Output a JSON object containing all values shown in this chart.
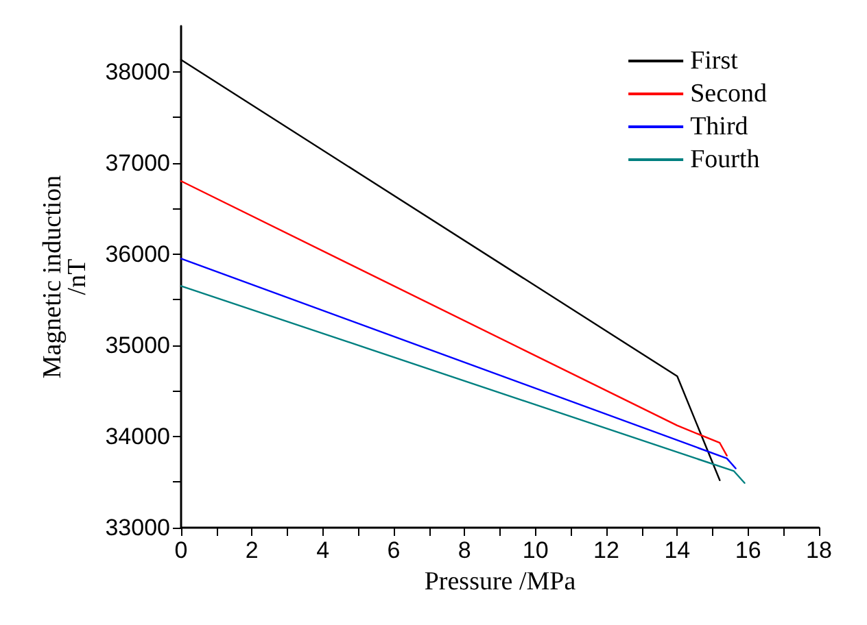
{
  "chart_data": {
    "type": "line",
    "xlabel": "Pressure /MPa",
    "ylabel": "Magnetic induction\n/nT",
    "xlim": [
      0,
      18
    ],
    "ylim": [
      33000,
      38500
    ],
    "xticks": [
      0,
      {
        "value": 1,
        "label": null
      },
      2,
      {
        "value": 3,
        "label": null
      },
      4,
      {
        "value": 5,
        "label": null
      },
      6,
      {
        "value": 7,
        "label": null
      },
      8,
      {
        "value": 9,
        "label": null
      },
      10,
      {
        "value": 11,
        "label": null
      },
      12,
      {
        "value": 13,
        "label": null
      },
      14,
      {
        "value": 15,
        "label": null
      },
      16,
      {
        "value": 17,
        "label": null
      },
      18
    ],
    "yticks": [
      33000,
      {
        "value": 33500,
        "label": null
      },
      34000,
      {
        "value": 34500,
        "label": null
      },
      35000,
      {
        "value": 35500,
        "label": null
      },
      36000,
      {
        "value": 36500,
        "label": null
      },
      37000,
      {
        "value": 37500,
        "label": null
      },
      38000
    ],
    "grid": false,
    "legend": "top right",
    "marker": "none",
    "line_style": "solid",
    "series": [
      {
        "name": "First",
        "color": "#000000",
        "x": [
          0,
          14,
          15.2
        ],
        "values": [
          38130,
          34660,
          33520
        ]
      },
      {
        "name": "Second",
        "color": "#ff0000",
        "x": [
          0,
          14,
          15.2,
          15.4
        ],
        "values": [
          36800,
          34120,
          33930,
          33790
        ]
      },
      {
        "name": "Third",
        "color": "#0000ff",
        "x": [
          0,
          15.4,
          15.65
        ],
        "values": [
          35950,
          33760,
          33650
        ]
      },
      {
        "name": "Fourth",
        "color": "#008080",
        "x": [
          0,
          15.6,
          15.9
        ],
        "values": [
          35650,
          33620,
          33490
        ]
      }
    ]
  }
}
